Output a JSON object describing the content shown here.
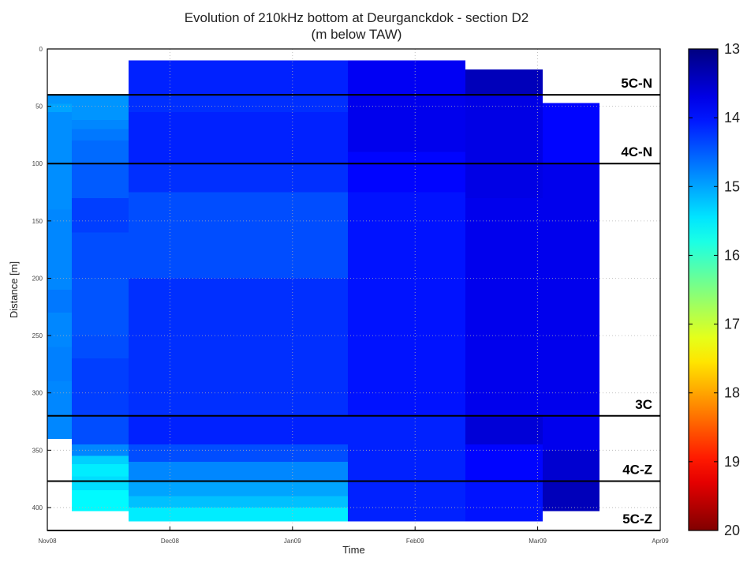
{
  "chart_data": {
    "type": "heatmap",
    "title": "Evolution of 210kHz bottom at Deurganckdok - section D2",
    "subtitle": "(m below TAW)",
    "xlabel": "Time",
    "ylabel": "Distance [m]",
    "x_ticks": [
      "Nov08",
      "Dec08",
      "Jan09",
      "Feb09",
      "Mar09",
      "Apr09"
    ],
    "x_domain": [
      "2008-11-01",
      "2009-04-01"
    ],
    "y_ticks": [
      0,
      50,
      100,
      150,
      200,
      250,
      300,
      350,
      400
    ],
    "ylim": [
      0,
      420
    ],
    "y_reversed": true,
    "colorbar": {
      "ticks": [
        13,
        14,
        15,
        16,
        17,
        18,
        19,
        20
      ],
      "range": [
        13,
        20
      ],
      "colormap": "jet-reversed",
      "position": "right"
    },
    "reference_lines": [
      {
        "label": "5C-N",
        "distance": 40
      },
      {
        "label": "4C-N",
        "distance": 100
      },
      {
        "label": "3C",
        "distance": 320
      },
      {
        "label": "4C-Z",
        "distance": 377
      },
      {
        "label": "5C-Z",
        "distance": 420
      }
    ],
    "grid": true,
    "surveys": [
      {
        "from": "2008-11-01",
        "to": "2008-11-07",
        "cells": [
          {
            "from": 40,
            "to": 48,
            "value": 14.9
          },
          {
            "from": 48,
            "to": 55,
            "value": 15.0
          },
          {
            "from": 55,
            "to": 140,
            "value": 14.85
          },
          {
            "from": 140,
            "to": 210,
            "value": 14.8
          },
          {
            "from": 210,
            "to": 230,
            "value": 14.7
          },
          {
            "from": 230,
            "to": 260,
            "value": 14.8
          },
          {
            "from": 260,
            "to": 290,
            "value": 14.75
          },
          {
            "from": 290,
            "to": 340,
            "value": 14.8
          }
        ]
      },
      {
        "from": "2008-11-07",
        "to": "2008-11-21",
        "cells": [
          {
            "from": 40,
            "to": 62,
            "value": 14.9
          },
          {
            "from": 62,
            "to": 70,
            "value": 14.8
          },
          {
            "from": 70,
            "to": 80,
            "value": 14.7
          },
          {
            "from": 80,
            "to": 100,
            "value": 14.6
          },
          {
            "from": 100,
            "to": 130,
            "value": 14.5
          },
          {
            "from": 130,
            "to": 160,
            "value": 14.3
          },
          {
            "from": 160,
            "to": 200,
            "value": 14.4
          },
          {
            "from": 200,
            "to": 250,
            "value": 14.45
          },
          {
            "from": 250,
            "to": 270,
            "value": 14.4
          },
          {
            "from": 270,
            "to": 320,
            "value": 14.3
          },
          {
            "from": 320,
            "to": 345,
            "value": 14.4
          },
          {
            "from": 345,
            "to": 355,
            "value": 14.8
          },
          {
            "from": 355,
            "to": 362,
            "value": 15.3
          },
          {
            "from": 362,
            "to": 373,
            "value": 15.5
          },
          {
            "from": 373,
            "to": 385,
            "value": 15.4
          },
          {
            "from": 385,
            "to": 403,
            "value": 15.6
          }
        ]
      },
      {
        "from": "2008-11-21",
        "to": "2009-01-14",
        "cells": [
          {
            "from": 10,
            "to": 40,
            "value": 14.1
          },
          {
            "from": 40,
            "to": 55,
            "value": 14.2
          },
          {
            "from": 55,
            "to": 100,
            "value": 14.1
          },
          {
            "from": 100,
            "to": 125,
            "value": 14.2
          },
          {
            "from": 125,
            "to": 200,
            "value": 14.4
          },
          {
            "from": 200,
            "to": 320,
            "value": 14.2
          },
          {
            "from": 320,
            "to": 345,
            "value": 14.1
          },
          {
            "from": 345,
            "to": 360,
            "value": 14.4
          },
          {
            "from": 360,
            "to": 377,
            "value": 14.8
          },
          {
            "from": 377,
            "to": 390,
            "value": 15.0
          },
          {
            "from": 390,
            "to": 400,
            "value": 15.2
          },
          {
            "from": 400,
            "to": 412,
            "value": 15.5
          }
        ]
      },
      {
        "from": "2009-01-14",
        "to": "2009-02-12",
        "cells": [
          {
            "from": 10,
            "to": 40,
            "value": 13.8
          },
          {
            "from": 40,
            "to": 90,
            "value": 13.75
          },
          {
            "from": 90,
            "to": 125,
            "value": 13.9
          },
          {
            "from": 125,
            "to": 320,
            "value": 14.0
          },
          {
            "from": 320,
            "to": 412,
            "value": 14.1
          }
        ]
      },
      {
        "from": "2009-02-12",
        "to": "2009-03-03",
        "cells": [
          {
            "from": 18,
            "to": 40,
            "value": 13.4
          },
          {
            "from": 40,
            "to": 130,
            "value": 13.7
          },
          {
            "from": 130,
            "to": 320,
            "value": 13.75
          },
          {
            "from": 320,
            "to": 345,
            "value": 13.6
          },
          {
            "from": 345,
            "to": 377,
            "value": 13.9
          },
          {
            "from": 377,
            "to": 412,
            "value": 14.0
          }
        ]
      },
      {
        "from": "2009-03-03",
        "to": "2009-03-17",
        "cells": [
          {
            "from": 47,
            "to": 100,
            "value": 13.9
          },
          {
            "from": 100,
            "to": 350,
            "value": 13.75
          },
          {
            "from": 350,
            "to": 378,
            "value": 13.55
          },
          {
            "from": 378,
            "to": 403,
            "value": 13.4
          }
        ]
      }
    ]
  }
}
